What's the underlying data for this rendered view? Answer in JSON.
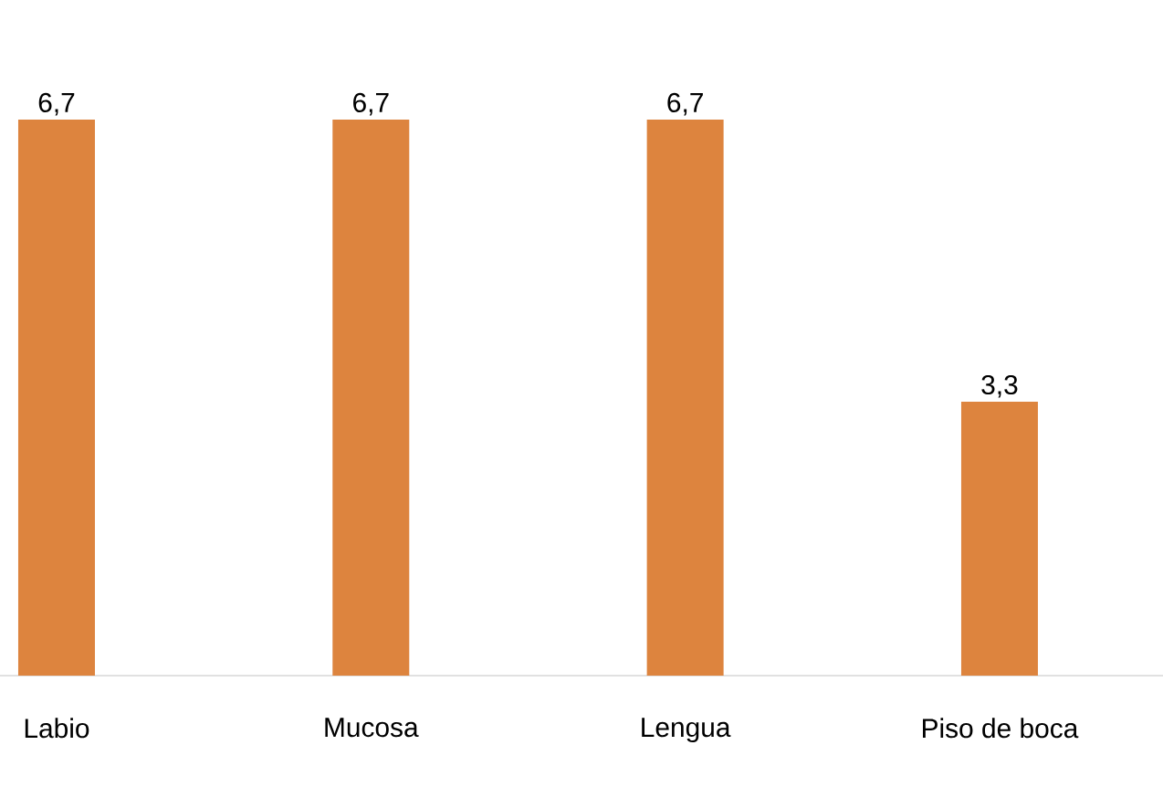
{
  "chart_data": {
    "type": "bar",
    "categories": [
      "Labio",
      "Mucosa",
      "Lengua",
      "Piso de boca"
    ],
    "values": [
      6.7,
      6.7,
      6.7,
      3.3
    ],
    "value_labels": [
      "6,7",
      "6,7",
      "6,7",
      "3,3"
    ],
    "color": "#dd843e",
    "tick_labels": "x"
  }
}
